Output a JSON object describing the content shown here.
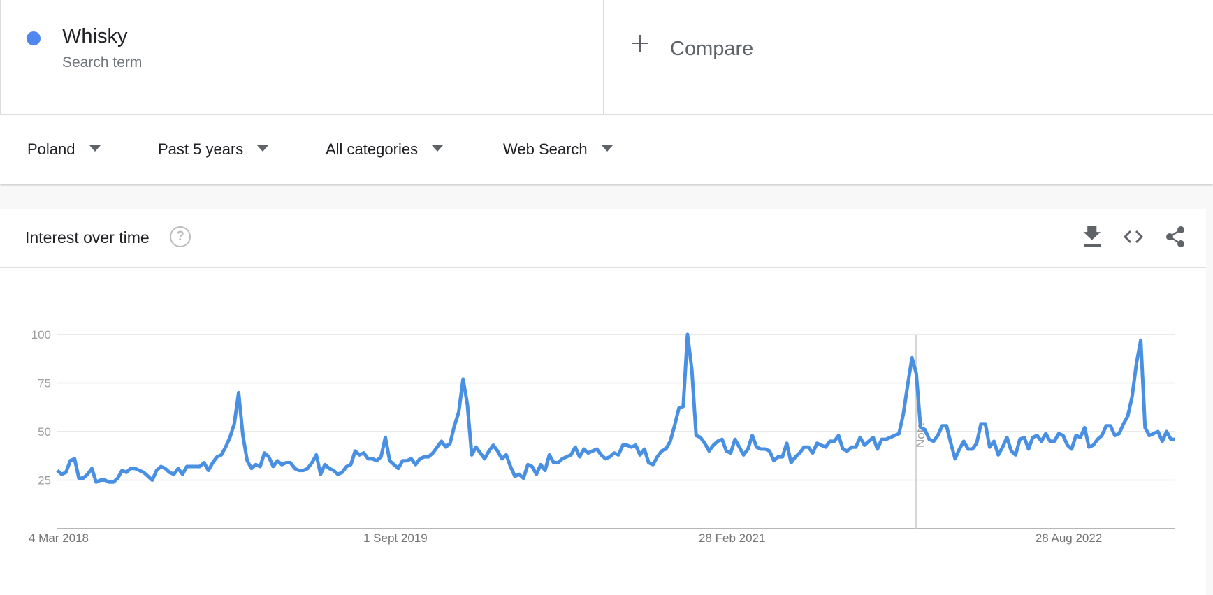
{
  "search_term": {
    "name": "Whisky",
    "type": "Search term",
    "color": "#4f86f0"
  },
  "compare": {
    "label": "Compare"
  },
  "filters": [
    {
      "label": "Poland"
    },
    {
      "label": "Past 5 years"
    },
    {
      "label": "All categories"
    },
    {
      "label": "Web Search"
    }
  ],
  "card": {
    "title": "Interest over time",
    "help": "?",
    "tools": [
      "download-icon",
      "embed-code-icon",
      "share-icon"
    ]
  },
  "chart_data": {
    "type": "line",
    "x_start": "4 Mar 2018",
    "x_ticks": [
      "4 Mar 2018",
      "1 Sept 2019",
      "28 Feb 2021",
      "28 Aug 2022"
    ],
    "y_ticks": [
      25,
      50,
      75,
      100
    ],
    "ylim": [
      0,
      100
    ],
    "grid": true,
    "line_color": "#4a90e2",
    "note_label": "Note",
    "series": [
      {
        "values": [
          30,
          28,
          29,
          35,
          36,
          26,
          26,
          28,
          31,
          24,
          25,
          25,
          24,
          24,
          26,
          30,
          29,
          31,
          31,
          30,
          29,
          27,
          25,
          30,
          32,
          31,
          29,
          28,
          31,
          28,
          32,
          32,
          32,
          32,
          34,
          30,
          34,
          37,
          38,
          42,
          47,
          54,
          70,
          48,
          35,
          31,
          33,
          32,
          39,
          37,
          32,
          35,
          33,
          34,
          34,
          31,
          30,
          30,
          31,
          34,
          38,
          28,
          33,
          31,
          30,
          28,
          29,
          32,
          33,
          40,
          38,
          39,
          36,
          36,
          35,
          37,
          47,
          35,
          33,
          31,
          35,
          35,
          36,
          33,
          36,
          37,
          37,
          39,
          42,
          45,
          42,
          44,
          53,
          60,
          77,
          64,
          38,
          42,
          39,
          36,
          40,
          43,
          40,
          36,
          38,
          32,
          27,
          28,
          26,
          33,
          32,
          28,
          33,
          30,
          38,
          34,
          34,
          36,
          37,
          38,
          42,
          37,
          41,
          39,
          40,
          41,
          38,
          36,
          37,
          39,
          38,
          43,
          43,
          42,
          43,
          38,
          41,
          34,
          33,
          37,
          40,
          41,
          45,
          53,
          62,
          63,
          100,
          82,
          48,
          47,
          44,
          40,
          43,
          45,
          46,
          40,
          39,
          46,
          42,
          38,
          41,
          48,
          42,
          41,
          41,
          40,
          35,
          37,
          37,
          44,
          34,
          37,
          39,
          42,
          42,
          39,
          44,
          43,
          42,
          45,
          45,
          48,
          41,
          40,
          42,
          42,
          47,
          43,
          45,
          47,
          41,
          46,
          46,
          47,
          48,
          49,
          59,
          74,
          88,
          80,
          52,
          51,
          46,
          45,
          48,
          53,
          53,
          44,
          36,
          41,
          45,
          41,
          41,
          44,
          54,
          54,
          42,
          45,
          38,
          42,
          47,
          40,
          38,
          46,
          47,
          41,
          47,
          48,
          45,
          49,
          45,
          45,
          49,
          48,
          43,
          41,
          48,
          47,
          52,
          42,
          43,
          46,
          48,
          53,
          53,
          48,
          49,
          54,
          58,
          68,
          85,
          97,
          52,
          48,
          49,
          50,
          45,
          50,
          46,
          46
        ]
      }
    ]
  }
}
